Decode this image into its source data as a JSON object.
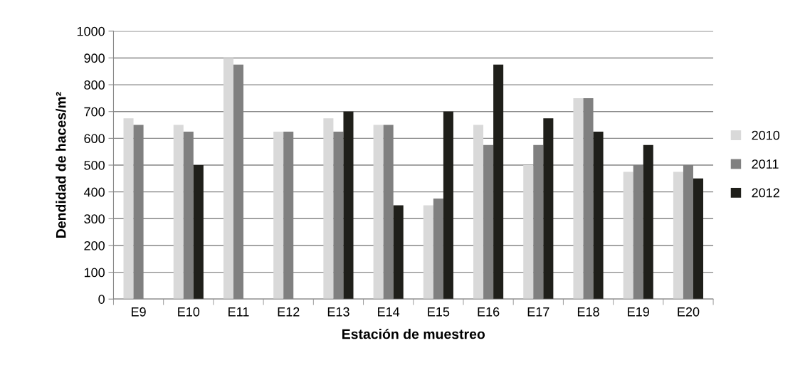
{
  "chart_data": {
    "type": "bar",
    "xlabel": "Estación de muestreo",
    "ylabel": "Dendidad de haces/m²",
    "categories": [
      "E9",
      "E10",
      "E11",
      "E12",
      "E13",
      "E14",
      "E15",
      "E16",
      "E17",
      "E18",
      "E19",
      "E20"
    ],
    "series": [
      {
        "name": "2010",
        "color": "#d9d9d9",
        "values": [
          675,
          650,
          900,
          625,
          675,
          650,
          350,
          650,
          500,
          750,
          475,
          475
        ]
      },
      {
        "name": "2011",
        "color": "#808080",
        "values": [
          650,
          625,
          875,
          625,
          625,
          650,
          375,
          575,
          575,
          750,
          500,
          500
        ]
      },
      {
        "name": "2012",
        "color": "#1f1f1a",
        "values": [
          null,
          500,
          null,
          null,
          700,
          350,
          700,
          875,
          675,
          625,
          575,
          450
        ]
      }
    ],
    "ylim": [
      0,
      1000
    ],
    "yticks": [
      0,
      100,
      200,
      300,
      400,
      500,
      600,
      700,
      800,
      900,
      1000
    ],
    "grid": "y",
    "legend": "right"
  }
}
